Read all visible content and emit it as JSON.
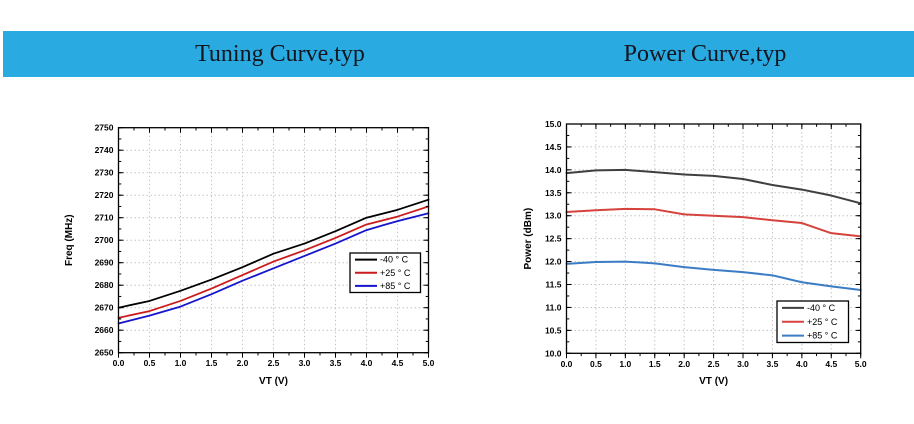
{
  "header": {
    "bar_color": "#29abe2",
    "text_color": "#13151f",
    "titles": [
      {
        "id": "tuning",
        "text": "Tuning Curve,typ"
      },
      {
        "id": "power",
        "text": "Power Curve,typ"
      }
    ]
  },
  "chart_data": [
    {
      "id": "tuning",
      "type": "line",
      "title": "Tuning Curve,typ",
      "xlabel": "VT (V)",
      "ylabel": "Freq (MHz)",
      "x": [
        0,
        0.5,
        1.0,
        1.5,
        2.0,
        2.5,
        3.0,
        3.5,
        4.0,
        4.5,
        5.0
      ],
      "xlim": [
        0,
        5
      ],
      "ylim": [
        2650,
        2750
      ],
      "xtick_step": 0.5,
      "ytick_step": 10,
      "xminor_step": 0.25,
      "yminor_step": 5,
      "xtick_decimals": 1,
      "ytick_decimals": 0,
      "grid": "dotted",
      "legend_position": "inside-right",
      "series": [
        {
          "name": "-40 ° C",
          "color": "#000000",
          "values": [
            2670,
            2673,
            2677.5,
            2682.5,
            2688,
            2694,
            2698.5,
            2704,
            2710,
            2713.5,
            2718
          ]
        },
        {
          "name": "+25 ° C",
          "color": "#cc1b1b",
          "values": [
            2665.5,
            2668.5,
            2673,
            2678.5,
            2684.5,
            2690.5,
            2695.5,
            2701,
            2707,
            2710.5,
            2715
          ]
        },
        {
          "name": "+85 ° C",
          "color": "#1515cd",
          "values": [
            2663,
            2666.5,
            2670.5,
            2676,
            2682,
            2687.5,
            2693,
            2698.5,
            2704.5,
            2708.5,
            2712
          ]
        }
      ]
    },
    {
      "id": "power",
      "type": "line",
      "title": "Power Curve,typ",
      "xlabel": "VT (V)",
      "ylabel": "Power (dBm)",
      "x": [
        0,
        0.5,
        1.0,
        1.5,
        2.0,
        2.5,
        3.0,
        3.5,
        4.0,
        4.5,
        5.0
      ],
      "xlim": [
        0,
        5
      ],
      "ylim": [
        10,
        15
      ],
      "xtick_step": 0.5,
      "ytick_step": 0.5,
      "xminor_step": 0.25,
      "yminor_step": 0.25,
      "xtick_decimals": 1,
      "ytick_decimals": 1,
      "grid": "dotted",
      "legend_position": "inside-right",
      "series": [
        {
          "name": "-40 ° C",
          "color": "#3f3f3f",
          "values": [
            13.93,
            13.99,
            14.0,
            13.95,
            13.9,
            13.87,
            13.8,
            13.67,
            13.57,
            13.44,
            13.27
          ]
        },
        {
          "name": "+25 ° C",
          "color": "#d6423c",
          "values": [
            13.08,
            13.12,
            13.15,
            13.14,
            13.03,
            13.0,
            12.97,
            12.9,
            12.84,
            12.62,
            12.55
          ]
        },
        {
          "name": "+85 ° C",
          "color": "#3b7dc4",
          "values": [
            11.95,
            11.99,
            12.0,
            11.96,
            11.88,
            11.82,
            11.77,
            11.7,
            11.55,
            11.46,
            11.38
          ]
        }
      ]
    }
  ]
}
